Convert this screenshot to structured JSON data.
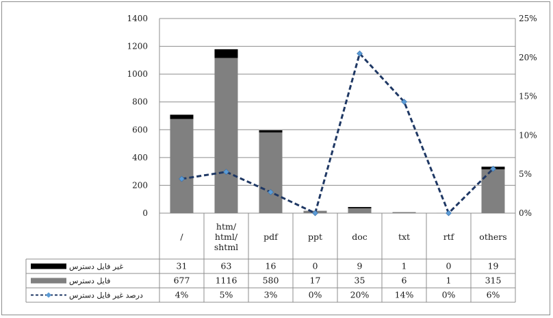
{
  "chart_data": {
    "type": "bar",
    "stacked": true,
    "combo": "bar+line",
    "categories": [
      "/",
      "htm/\nhtml/\nshtml",
      "pdf",
      "ppt",
      "doc",
      "txt",
      "rtf",
      "others"
    ],
    "series": [
      {
        "name": "غیر فایل دسترس",
        "type": "bar",
        "color": "#000000",
        "values": [
          31,
          63,
          16,
          0,
          9,
          1,
          0,
          19
        ]
      },
      {
        "name": "فایل دسترس",
        "type": "bar",
        "color": "#808080",
        "values": [
          677,
          1116,
          580,
          17,
          35,
          6,
          1,
          315
        ]
      },
      {
        "name": "درصد غیر فایل دسترس",
        "type": "line",
        "axis": "right",
        "color": "#1f3864",
        "marker_color": "#5b9bd5",
        "values": [
          4.4,
          5.3,
          2.7,
          0,
          20.5,
          14.3,
          0,
          5.7
        ]
      }
    ],
    "table_values": {
      "row_0": [
        "31",
        "63",
        "16",
        "0",
        "9",
        "1",
        "0",
        "19"
      ],
      "row_1": [
        "677",
        "1116",
        "580",
        "17",
        "35",
        "6",
        "1",
        "315"
      ],
      "row_2": [
        "4%",
        "5%",
        "3%",
        "0%",
        "20%",
        "14%",
        "0%",
        "6%"
      ]
    },
    "yticks_left": [
      "1400",
      "1200",
      "1000",
      "800",
      "600",
      "400",
      "200",
      "0"
    ],
    "yticks_right": [
      "25%",
      "20%",
      "15%",
      "10%",
      "5%",
      "0%"
    ],
    "ylim_left": [
      0,
      1400
    ],
    "ylim_right": [
      0,
      25
    ],
    "grid": true,
    "legend": "data table"
  }
}
